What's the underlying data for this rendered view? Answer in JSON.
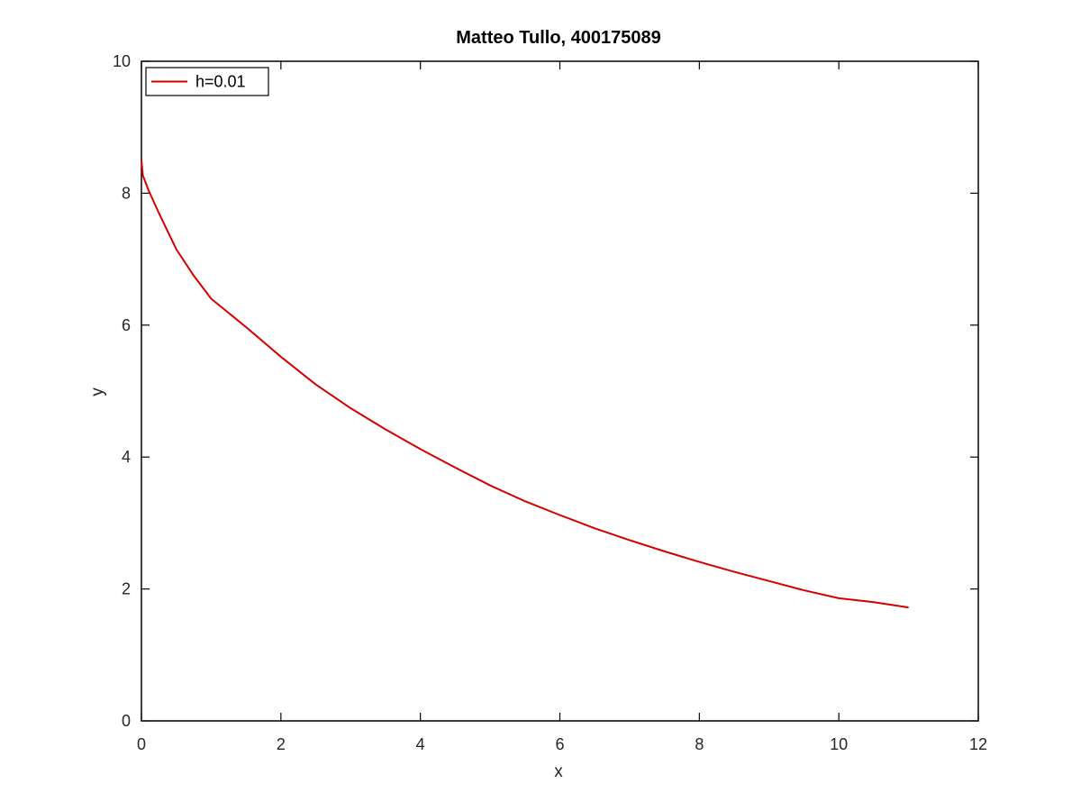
{
  "chart_data": {
    "type": "line",
    "title": "Matteo Tullo, 400175089",
    "xlabel": "x",
    "ylabel": "y",
    "xlim": [
      0,
      12
    ],
    "ylim": [
      0,
      10
    ],
    "xticks": [
      0,
      2,
      4,
      6,
      8,
      10,
      12
    ],
    "yticks": [
      0,
      2,
      4,
      6,
      8,
      10
    ],
    "xtick_labels": [
      "0",
      "2",
      "4",
      "6",
      "8",
      "10",
      "12"
    ],
    "ytick_labels": [
      "0",
      "2",
      "4",
      "6",
      "8",
      "10"
    ],
    "grid": false,
    "legend": {
      "position": "top-left"
    },
    "series": [
      {
        "name": "h=0.01",
        "color": "#d40000",
        "x": [
          0,
          0.02,
          0.1,
          0.25,
          0.5,
          0.75,
          1,
          1.5,
          2,
          2.5,
          3,
          3.5,
          4,
          4.5,
          5,
          5.5,
          6,
          6.5,
          7,
          7.5,
          8,
          8.5,
          9,
          9.5,
          10,
          10.5,
          11
        ],
        "y": [
          8.5,
          8.27,
          8.05,
          7.7,
          7.15,
          6.75,
          6.4,
          5.97,
          5.52,
          5.1,
          4.74,
          4.42,
          4.12,
          3.84,
          3.57,
          3.33,
          3.12,
          2.92,
          2.74,
          2.57,
          2.41,
          2.26,
          2.12,
          1.98,
          1.86,
          1.8,
          1.72
        ]
      }
    ]
  }
}
